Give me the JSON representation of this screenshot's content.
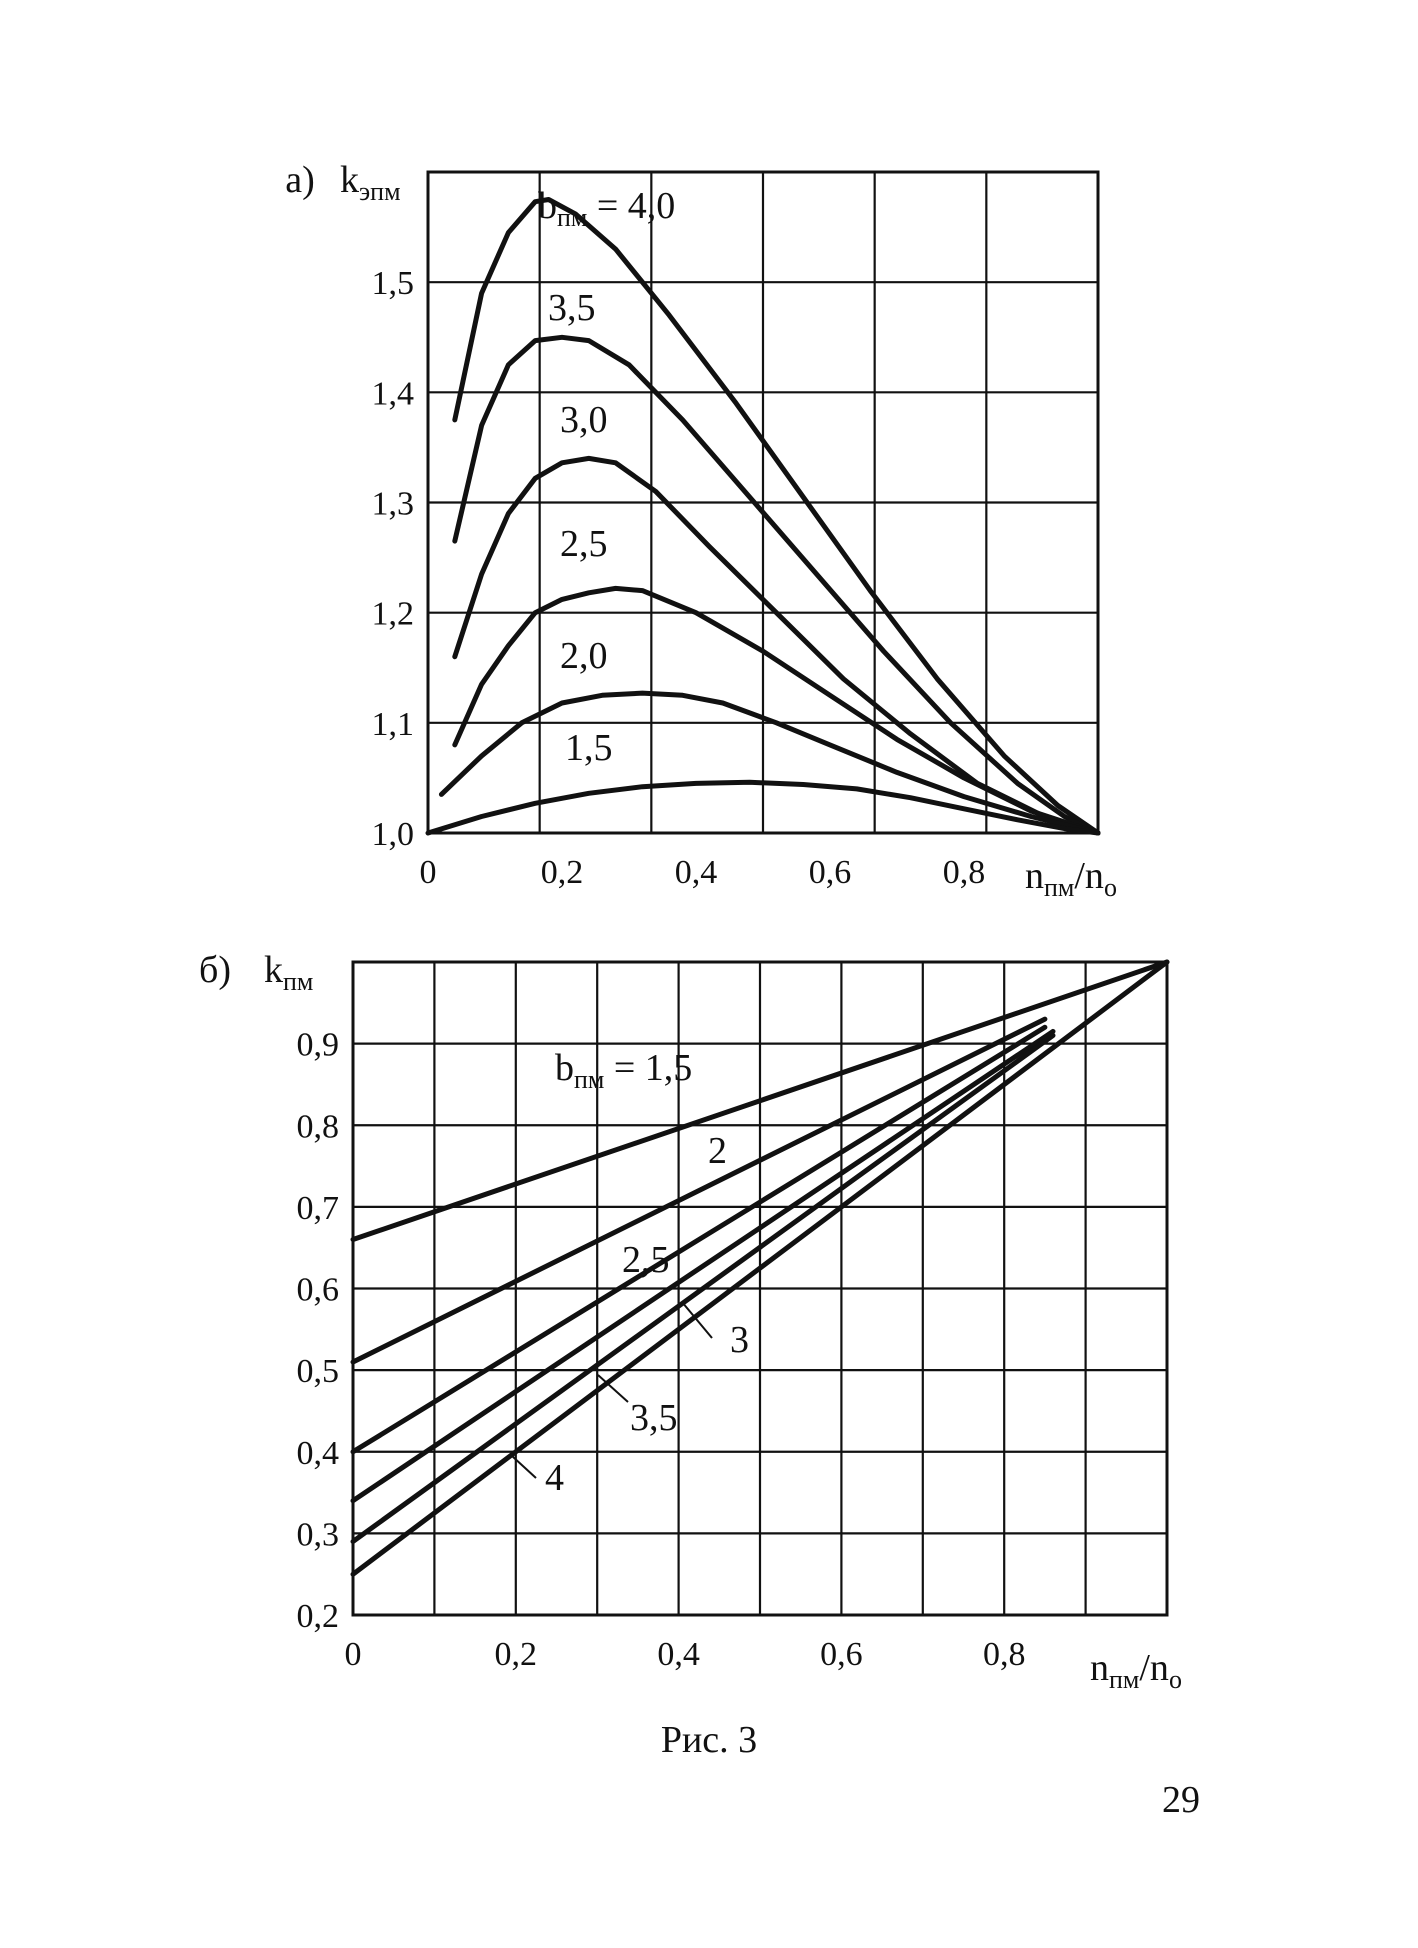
{
  "chart_data": [
    {
      "type": "line",
      "panel_label": "а)",
      "ylabel_main": "k",
      "ylabel_sub": "эпм",
      "xlabel_main": "n",
      "xlabel_sub": "пм",
      "xlabel_rest": "/n",
      "xlabel_sub2": "о",
      "xlim": [
        0,
        1.0
      ],
      "ylim": [
        1.0,
        1.6
      ],
      "x_ticks": [
        "0",
        "0,2",
        "0,4",
        "0,6",
        "0,8"
      ],
      "y_ticks": [
        "1,0",
        "1,1",
        "1,2",
        "1,3",
        "1,4",
        "1,5"
      ],
      "grid": true,
      "series": [
        {
          "name": "b<sub>пм</sub> = 4,0",
          "label_prefix": "b",
          "label_sub": "пм",
          "label_value": " = 4,0",
          "x": [
            0.04,
            0.08,
            0.12,
            0.16,
            0.18,
            0.22,
            0.28,
            0.36,
            0.46,
            0.56,
            0.66,
            0.76,
            0.86,
            0.94,
            1.0
          ],
          "y": [
            1.375,
            1.49,
            1.545,
            1.573,
            1.575,
            1.562,
            1.53,
            1.47,
            1.39,
            1.305,
            1.22,
            1.14,
            1.07,
            1.025,
            1.0
          ]
        },
        {
          "name": "3,5",
          "label_value": "3,5",
          "x": [
            0.04,
            0.08,
            0.12,
            0.16,
            0.2,
            0.24,
            0.3,
            0.38,
            0.48,
            0.58,
            0.68,
            0.78,
            0.88,
            0.95,
            1.0
          ],
          "y": [
            1.265,
            1.37,
            1.425,
            1.447,
            1.45,
            1.447,
            1.425,
            1.375,
            1.305,
            1.235,
            1.165,
            1.1,
            1.045,
            1.015,
            1.0
          ]
        },
        {
          "name": "3,0",
          "label_value": "3,0",
          "x": [
            0.04,
            0.08,
            0.12,
            0.16,
            0.2,
            0.24,
            0.28,
            0.34,
            0.42,
            0.52,
            0.62,
            0.72,
            0.82,
            0.92,
            1.0
          ],
          "y": [
            1.16,
            1.235,
            1.29,
            1.322,
            1.336,
            1.34,
            1.336,
            1.31,
            1.26,
            1.2,
            1.14,
            1.09,
            1.045,
            1.015,
            1.0
          ]
        },
        {
          "name": "2,5",
          "label_value": "2,5",
          "x": [
            0.04,
            0.08,
            0.12,
            0.16,
            0.2,
            0.24,
            0.28,
            0.32,
            0.4,
            0.5,
            0.6,
            0.7,
            0.8,
            0.9,
            1.0
          ],
          "y": [
            1.08,
            1.135,
            1.17,
            1.2,
            1.212,
            1.218,
            1.222,
            1.22,
            1.2,
            1.165,
            1.125,
            1.085,
            1.05,
            1.02,
            1.0
          ]
        },
        {
          "name": "2,0",
          "label_value": "2,0",
          "x": [
            0.02,
            0.08,
            0.14,
            0.2,
            0.26,
            0.32,
            0.38,
            0.44,
            0.52,
            0.6,
            0.7,
            0.8,
            0.9,
            1.0
          ],
          "y": [
            1.035,
            1.07,
            1.1,
            1.118,
            1.125,
            1.127,
            1.125,
            1.118,
            1.1,
            1.08,
            1.055,
            1.033,
            1.015,
            1.0
          ]
        },
        {
          "name": "1,5",
          "label_value": "1,5",
          "x": [
            0.0,
            0.08,
            0.16,
            0.24,
            0.32,
            0.4,
            0.48,
            0.56,
            0.64,
            0.72,
            0.8,
            0.88,
            0.95,
            1.0
          ],
          "y": [
            1.0,
            1.015,
            1.027,
            1.036,
            1.042,
            1.045,
            1.046,
            1.044,
            1.04,
            1.032,
            1.022,
            1.012,
            1.004,
            1.0
          ]
        }
      ]
    },
    {
      "type": "line",
      "panel_label": "б)",
      "ylabel_main": "k",
      "ylabel_sub": "пм",
      "xlabel_main": "n",
      "xlabel_sub": "пм",
      "xlabel_rest": "/n",
      "xlabel_sub2": "о",
      "xlim": [
        0,
        1.0
      ],
      "ylim": [
        0.2,
        1.0
      ],
      "x_ticks": [
        "0",
        "0,2",
        "0,4",
        "0,6",
        "0,8"
      ],
      "y_ticks": [
        "0,2",
        "0,3",
        "0,4",
        "0,5",
        "0,6",
        "0,7",
        "0,8",
        "0,9"
      ],
      "grid": true,
      "series": [
        {
          "name": "b<sub>пм</sub> = 1,5",
          "label_prefix": "b",
          "label_sub": "пм",
          "label_value": " = 1,5",
          "x": [
            0,
            1.0
          ],
          "y": [
            0.66,
            1.0
          ]
        },
        {
          "name": "2",
          "label_value": "2",
          "x": [
            0,
            0.85
          ],
          "y": [
            0.51,
            0.93
          ]
        },
        {
          "name": "2,5",
          "label_value": "2,5",
          "x": [
            0,
            0.85
          ],
          "y": [
            0.4,
            0.92
          ]
        },
        {
          "name": "3",
          "label_value": "3",
          "x": [
            0,
            0.86
          ],
          "y": [
            0.34,
            0.915
          ]
        },
        {
          "name": "3,5",
          "label_value": "3,5",
          "x": [
            0,
            0.86
          ],
          "y": [
            0.29,
            0.91
          ]
        },
        {
          "name": "4",
          "label_value": "4",
          "x": [
            0,
            1.0
          ],
          "y": [
            0.25,
            1.0
          ]
        }
      ]
    }
  ],
  "caption": "Рис. 3",
  "page_number": "29"
}
